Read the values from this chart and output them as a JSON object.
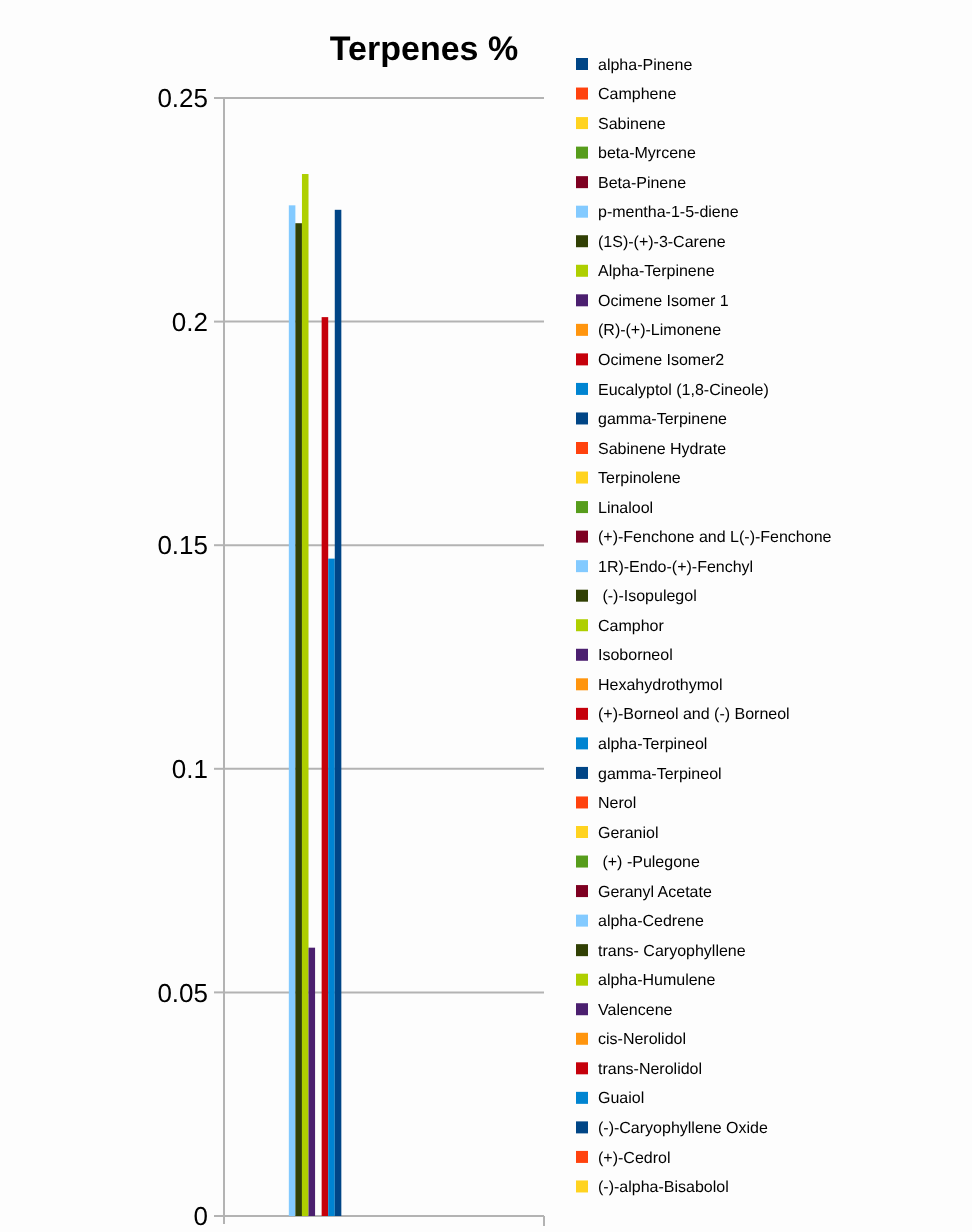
{
  "chart_data": {
    "type": "bar",
    "title": "Terpenes %",
    "categories": [
      null
    ],
    "ylim": [
      0,
      0.25
    ],
    "yticks": [
      0,
      0.05,
      0.1,
      0.15,
      0.2,
      0.25
    ],
    "grid": "y",
    "legend": "right",
    "series": [
      {
        "name": "alpha-Pinene",
        "color": "#004586",
        "values": [
          0
        ]
      },
      {
        "name": "Camphene",
        "color": "#ff420e",
        "values": [
          0
        ]
      },
      {
        "name": "Sabinene",
        "color": "#ffd320",
        "values": [
          0
        ]
      },
      {
        "name": "beta-Myrcene",
        "color": "#579d1c",
        "values": [
          0
        ]
      },
      {
        "name": "Beta-Pinene",
        "color": "#7e0021",
        "values": [
          0
        ]
      },
      {
        "name": "p-mentha-1-5-diene",
        "color": "#83caff",
        "values": [
          0.226
        ]
      },
      {
        "name": "(1S)-(+)-3-Carene",
        "color": "#314004",
        "values": [
          0.222
        ]
      },
      {
        "name": "Alpha-Terpinene",
        "color": "#aecf00",
        "values": [
          0.233
        ]
      },
      {
        "name": "Ocimene Isomer 1",
        "color": "#4b1f6f",
        "values": [
          0.06
        ]
      },
      {
        "name": "(R)-(+)-Limonene",
        "color": "#ff950e",
        "values": [
          0
        ]
      },
      {
        "name": "Ocimene Isomer2",
        "color": "#c5000b",
        "values": [
          0.201
        ]
      },
      {
        "name": "Eucalyptol (1,8-Cineole)",
        "color": "#0084d1",
        "values": [
          0.147
        ]
      },
      {
        "name": "gamma-Terpinene",
        "color": "#004586",
        "values": [
          0.225
        ]
      },
      {
        "name": "Sabinene Hydrate",
        "color": "#ff420e",
        "values": [
          0
        ]
      },
      {
        "name": "Terpinolene",
        "color": "#ffd320",
        "values": [
          0
        ]
      },
      {
        "name": "Linalool",
        "color": "#579d1c",
        "values": [
          0
        ]
      },
      {
        "name": "(+)-Fenchone and L(-)-Fenchone",
        "color": "#7e0021",
        "values": [
          0
        ]
      },
      {
        "name": "1R)-Endo-(+)-Fenchyl",
        "color": "#83caff",
        "values": [
          0
        ]
      },
      {
        "name": " (-)-Isopulegol",
        "color": "#314004",
        "values": [
          0
        ]
      },
      {
        "name": "Camphor",
        "color": "#aecf00",
        "values": [
          0
        ]
      },
      {
        "name": "Isoborneol",
        "color": "#4b1f6f",
        "values": [
          0
        ]
      },
      {
        "name": "Hexahydrothymol",
        "color": "#ff950e",
        "values": [
          0
        ]
      },
      {
        "name": "(+)-Borneol and (-) Borneol",
        "color": "#c5000b",
        "values": [
          0
        ]
      },
      {
        "name": "alpha-Terpineol",
        "color": "#0084d1",
        "values": [
          0
        ]
      },
      {
        "name": "gamma-Terpineol",
        "color": "#004586",
        "values": [
          0
        ]
      },
      {
        "name": "Nerol",
        "color": "#ff420e",
        "values": [
          0
        ]
      },
      {
        "name": "Geraniol",
        "color": "#ffd320",
        "values": [
          0
        ]
      },
      {
        "name": " (+) -Pulegone",
        "color": "#579d1c",
        "values": [
          0
        ]
      },
      {
        "name": "Geranyl Acetate",
        "color": "#7e0021",
        "values": [
          0
        ]
      },
      {
        "name": "alpha-Cedrene",
        "color": "#83caff",
        "values": [
          0
        ]
      },
      {
        "name": "trans- Caryophyllene",
        "color": "#314004",
        "values": [
          0
        ]
      },
      {
        "name": "alpha-Humulene",
        "color": "#aecf00",
        "values": [
          0
        ]
      },
      {
        "name": "Valencene",
        "color": "#4b1f6f",
        "values": [
          0
        ]
      },
      {
        "name": "cis-Nerolidol",
        "color": "#ff950e",
        "values": [
          0
        ]
      },
      {
        "name": "trans-Nerolidol",
        "color": "#c5000b",
        "values": [
          0
        ]
      },
      {
        "name": "Guaiol",
        "color": "#0084d1",
        "values": [
          0
        ]
      },
      {
        "name": "(-)-Caryophyllene Oxide",
        "color": "#004586",
        "values": [
          0
        ]
      },
      {
        "name": "(+)-Cedrol",
        "color": "#ff420e",
        "values": [
          0
        ]
      },
      {
        "name": "(-)-alpha-Bisabolol",
        "color": "#ffd320",
        "values": [
          0
        ]
      }
    ]
  }
}
